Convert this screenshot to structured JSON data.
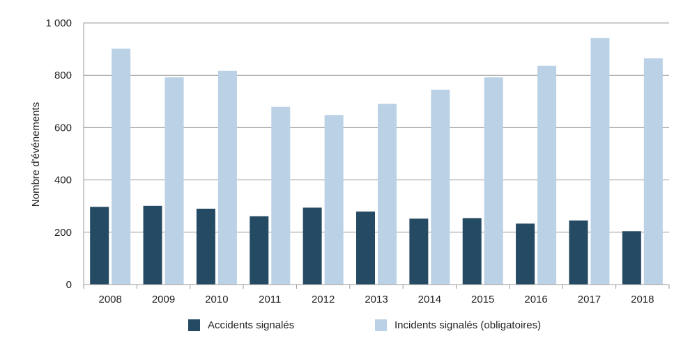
{
  "chart_data": {
    "type": "bar",
    "title": "",
    "xlabel": "",
    "ylabel": "Nombre d'événements",
    "ylim": [
      0,
      1000
    ],
    "yticks": [
      0,
      200,
      400,
      600,
      800,
      1000
    ],
    "ytick_labels": [
      "0",
      "200",
      "400",
      "600",
      "800",
      "1 000"
    ],
    "categories": [
      "2008",
      "2009",
      "2010",
      "2011",
      "2012",
      "2013",
      "2014",
      "2015",
      "2016",
      "2017",
      "2018"
    ],
    "grid": true,
    "legend_position": "bottom",
    "series": [
      {
        "name": "Accidents signalés",
        "color": "#254a63",
        "values": [
          297,
          301,
          290,
          261,
          294,
          279,
          252,
          254,
          233,
          245,
          204
        ]
      },
      {
        "name": "Incidents signalés (obligatoires)",
        "color": "#bad1e6",
        "values": [
          902,
          792,
          817,
          679,
          648,
          691,
          745,
          792,
          836,
          942,
          865
        ]
      }
    ]
  }
}
